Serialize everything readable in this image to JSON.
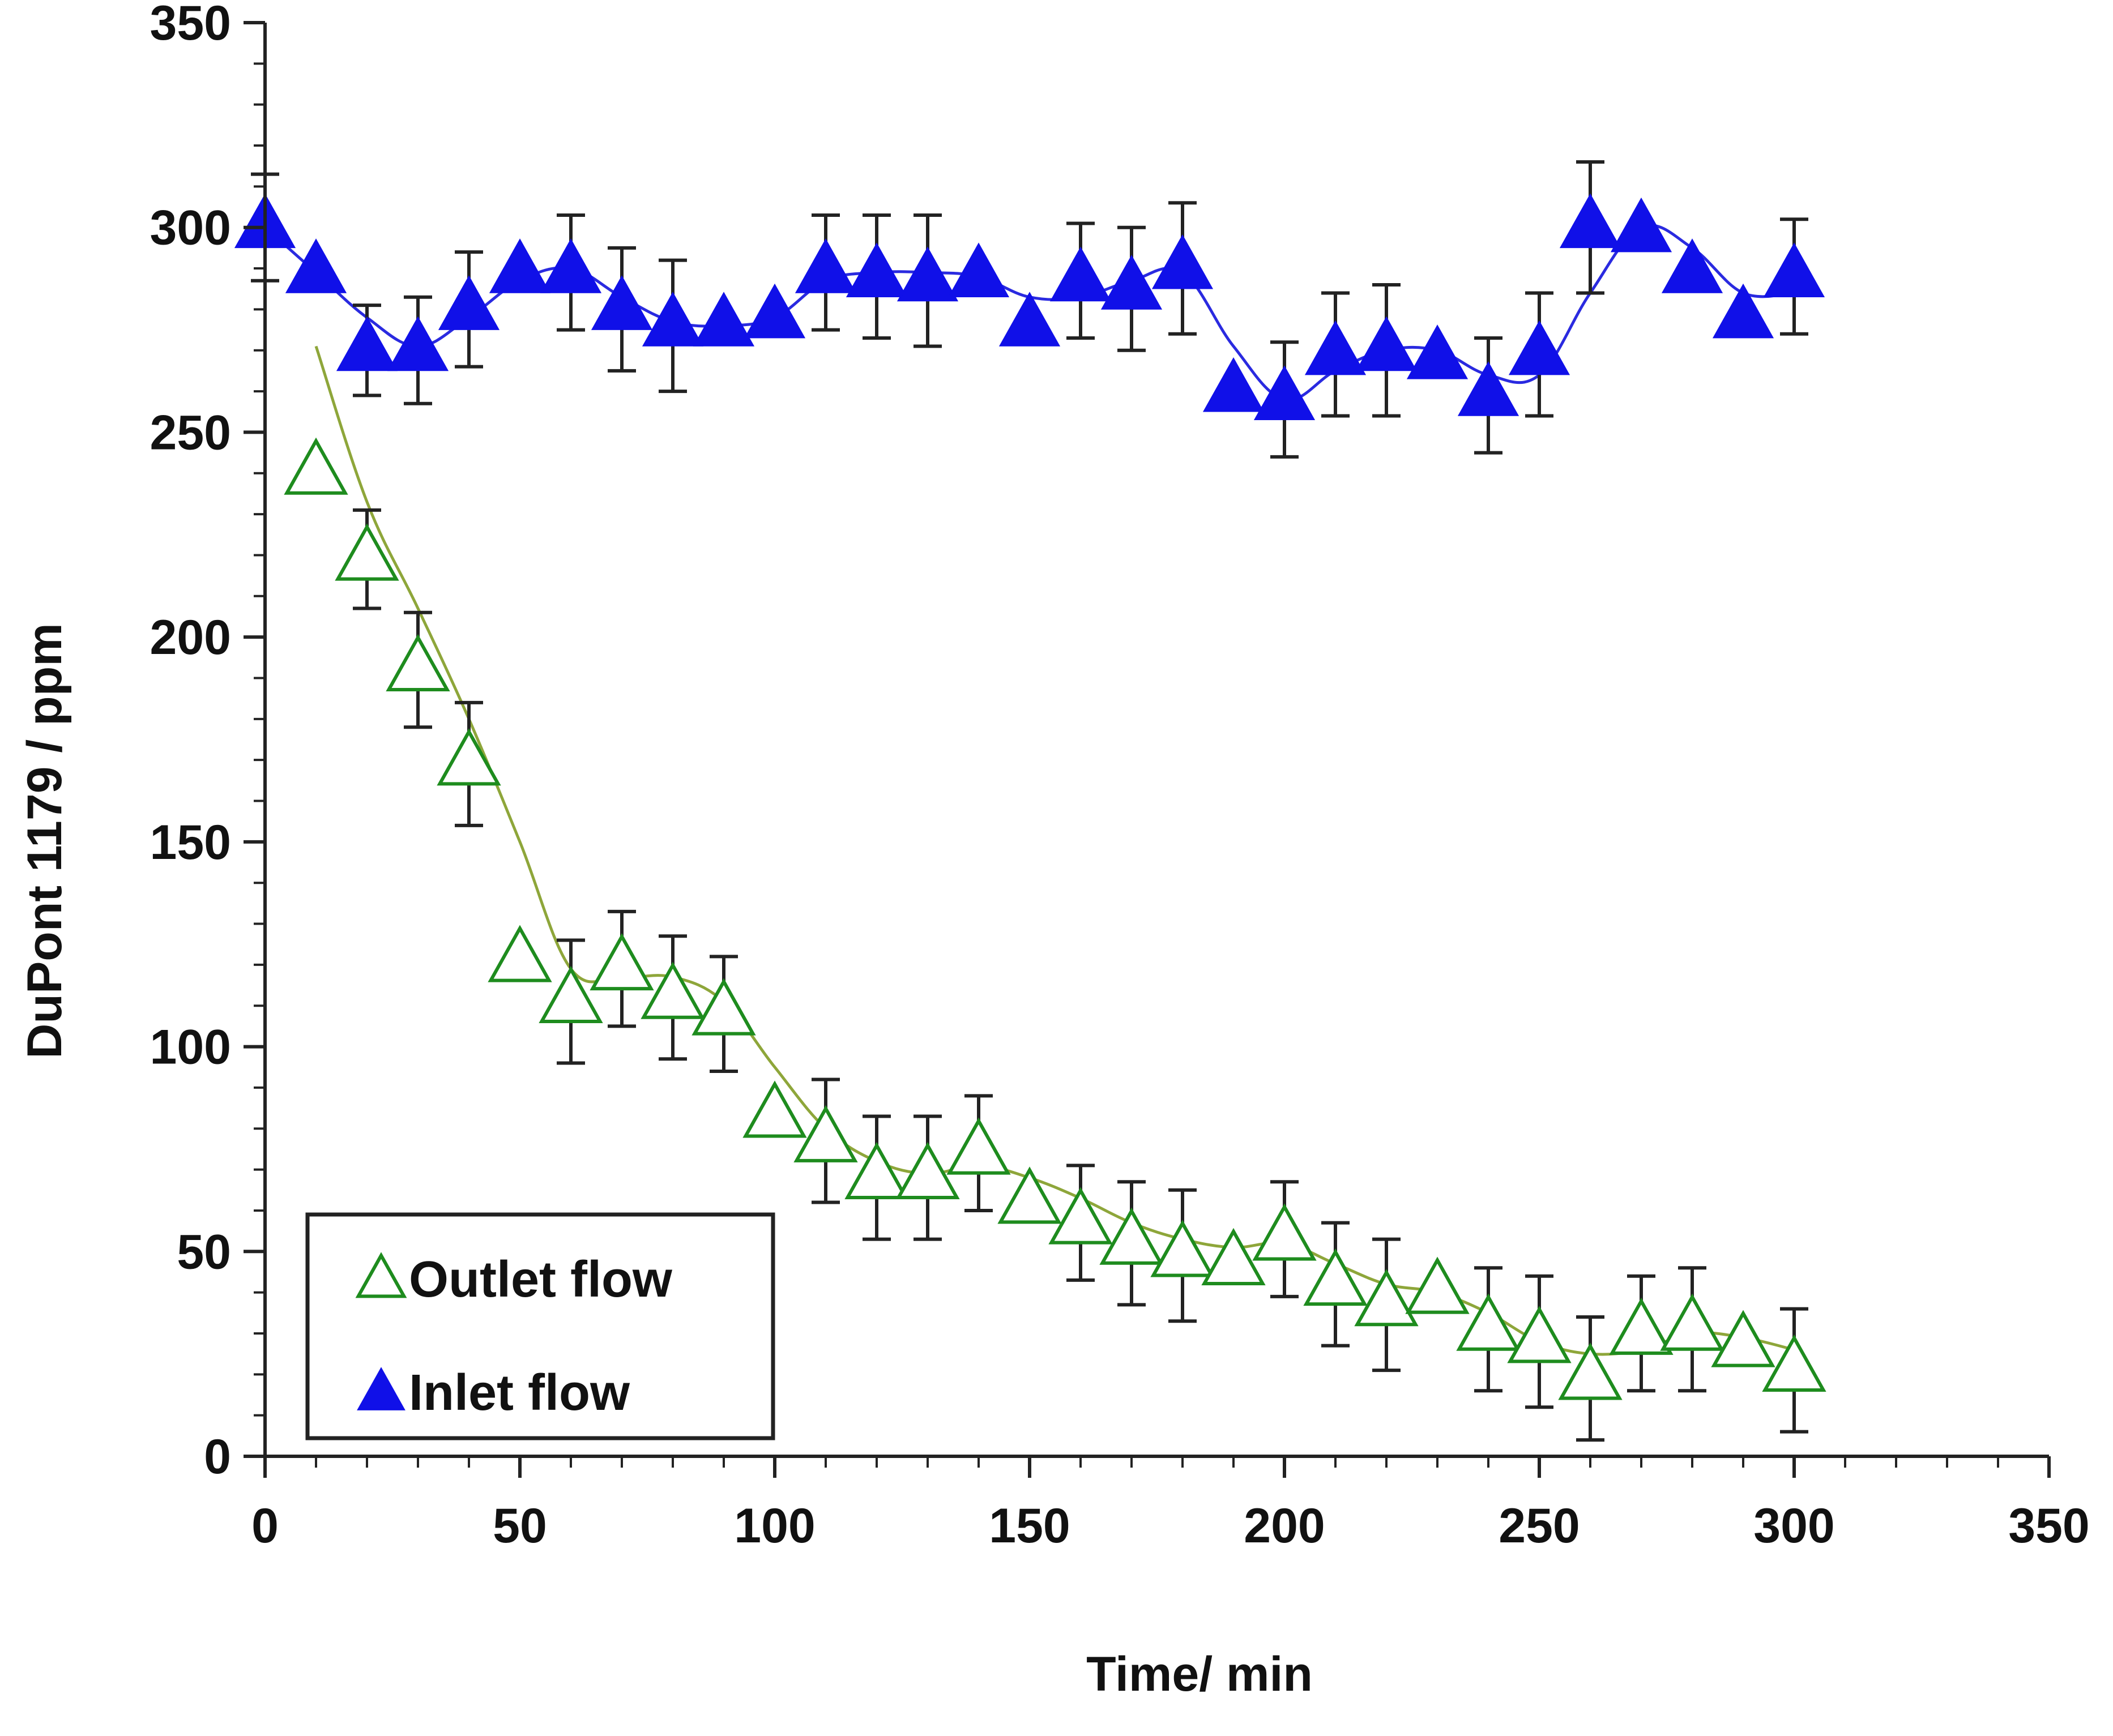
{
  "chart_data": {
    "type": "scatter",
    "xlabel": "Time/ min",
    "ylabel": "DuPont 1179 / ppm",
    "xlim": [
      0,
      350
    ],
    "ylim": [
      0,
      350
    ],
    "xticks": [
      0,
      50,
      100,
      150,
      200,
      250,
      300,
      350
    ],
    "yticks": [
      0,
      50,
      100,
      150,
      200,
      250,
      300,
      350
    ],
    "x_minor_step": 10,
    "y_minor_step": 10,
    "grid": false,
    "legend_position": "bottom-left",
    "series": [
      {
        "name": "Outlet flow",
        "marker": "open-triangle",
        "color": "#1e8c1e",
        "line_color": "#8ea63a",
        "x": [
          10,
          20,
          30,
          40,
          50,
          60,
          70,
          80,
          90,
          100,
          110,
          120,
          130,
          140,
          150,
          160,
          170,
          180,
          190,
          200,
          210,
          220,
          230,
          240,
          250,
          260,
          270,
          280,
          290,
          300
        ],
        "y": [
          240,
          219,
          192,
          169,
          121,
          111,
          119,
          112,
          108,
          83,
          77,
          68,
          68,
          74,
          62,
          57,
          52,
          49,
          47,
          53,
          42,
          37,
          40,
          31,
          28,
          19,
          30,
          31,
          27,
          21
        ],
        "err": [
          0,
          12,
          14,
          15,
          0,
          15,
          14,
          15,
          14,
          0,
          15,
          15,
          15,
          14,
          0,
          14,
          15,
          16,
          0,
          14,
          15,
          16,
          0,
          15,
          16,
          15,
          14,
          15,
          0,
          15
        ],
        "trend_y": [
          271,
          233,
          207,
          180,
          150,
          119,
          117,
          117,
          111,
          95,
          80,
          72,
          69,
          71,
          68,
          63,
          57,
          53,
          51,
          52,
          47,
          42,
          40,
          35,
          28,
          25,
          26,
          30,
          29,
          26
        ]
      },
      {
        "name": "Inlet flow",
        "marker": "filled-triangle",
        "color": "#1010e8",
        "line_color": "#2a2ae0",
        "x": [
          0,
          10,
          20,
          30,
          40,
          50,
          60,
          70,
          80,
          90,
          100,
          110,
          120,
          130,
          140,
          150,
          160,
          170,
          180,
          190,
          200,
          210,
          220,
          230,
          240,
          250,
          260,
          270,
          280,
          290,
          300
        ],
        "y": [
          300,
          289,
          270,
          270,
          280,
          289,
          289,
          280,
          276,
          276,
          278,
          289,
          288,
          287,
          288,
          276,
          287,
          285,
          290,
          260,
          258,
          269,
          270,
          268,
          259,
          269,
          300,
          299,
          289,
          278,
          288
        ],
        "err": [
          13,
          0,
          11,
          13,
          14,
          0,
          14,
          15,
          16,
          0,
          0,
          14,
          15,
          16,
          0,
          0,
          14,
          15,
          16,
          0,
          14,
          15,
          16,
          0,
          14,
          15,
          16,
          0,
          0,
          0,
          14
        ],
        "trend_y": [
          300,
          289,
          278,
          271,
          278,
          287,
          290,
          283,
          277,
          276,
          278,
          287,
          289,
          289,
          288,
          283,
          283,
          287,
          289,
          271,
          258,
          265,
          270,
          270,
          264,
          264,
          284,
          300,
          295,
          284,
          284
        ]
      }
    ]
  }
}
